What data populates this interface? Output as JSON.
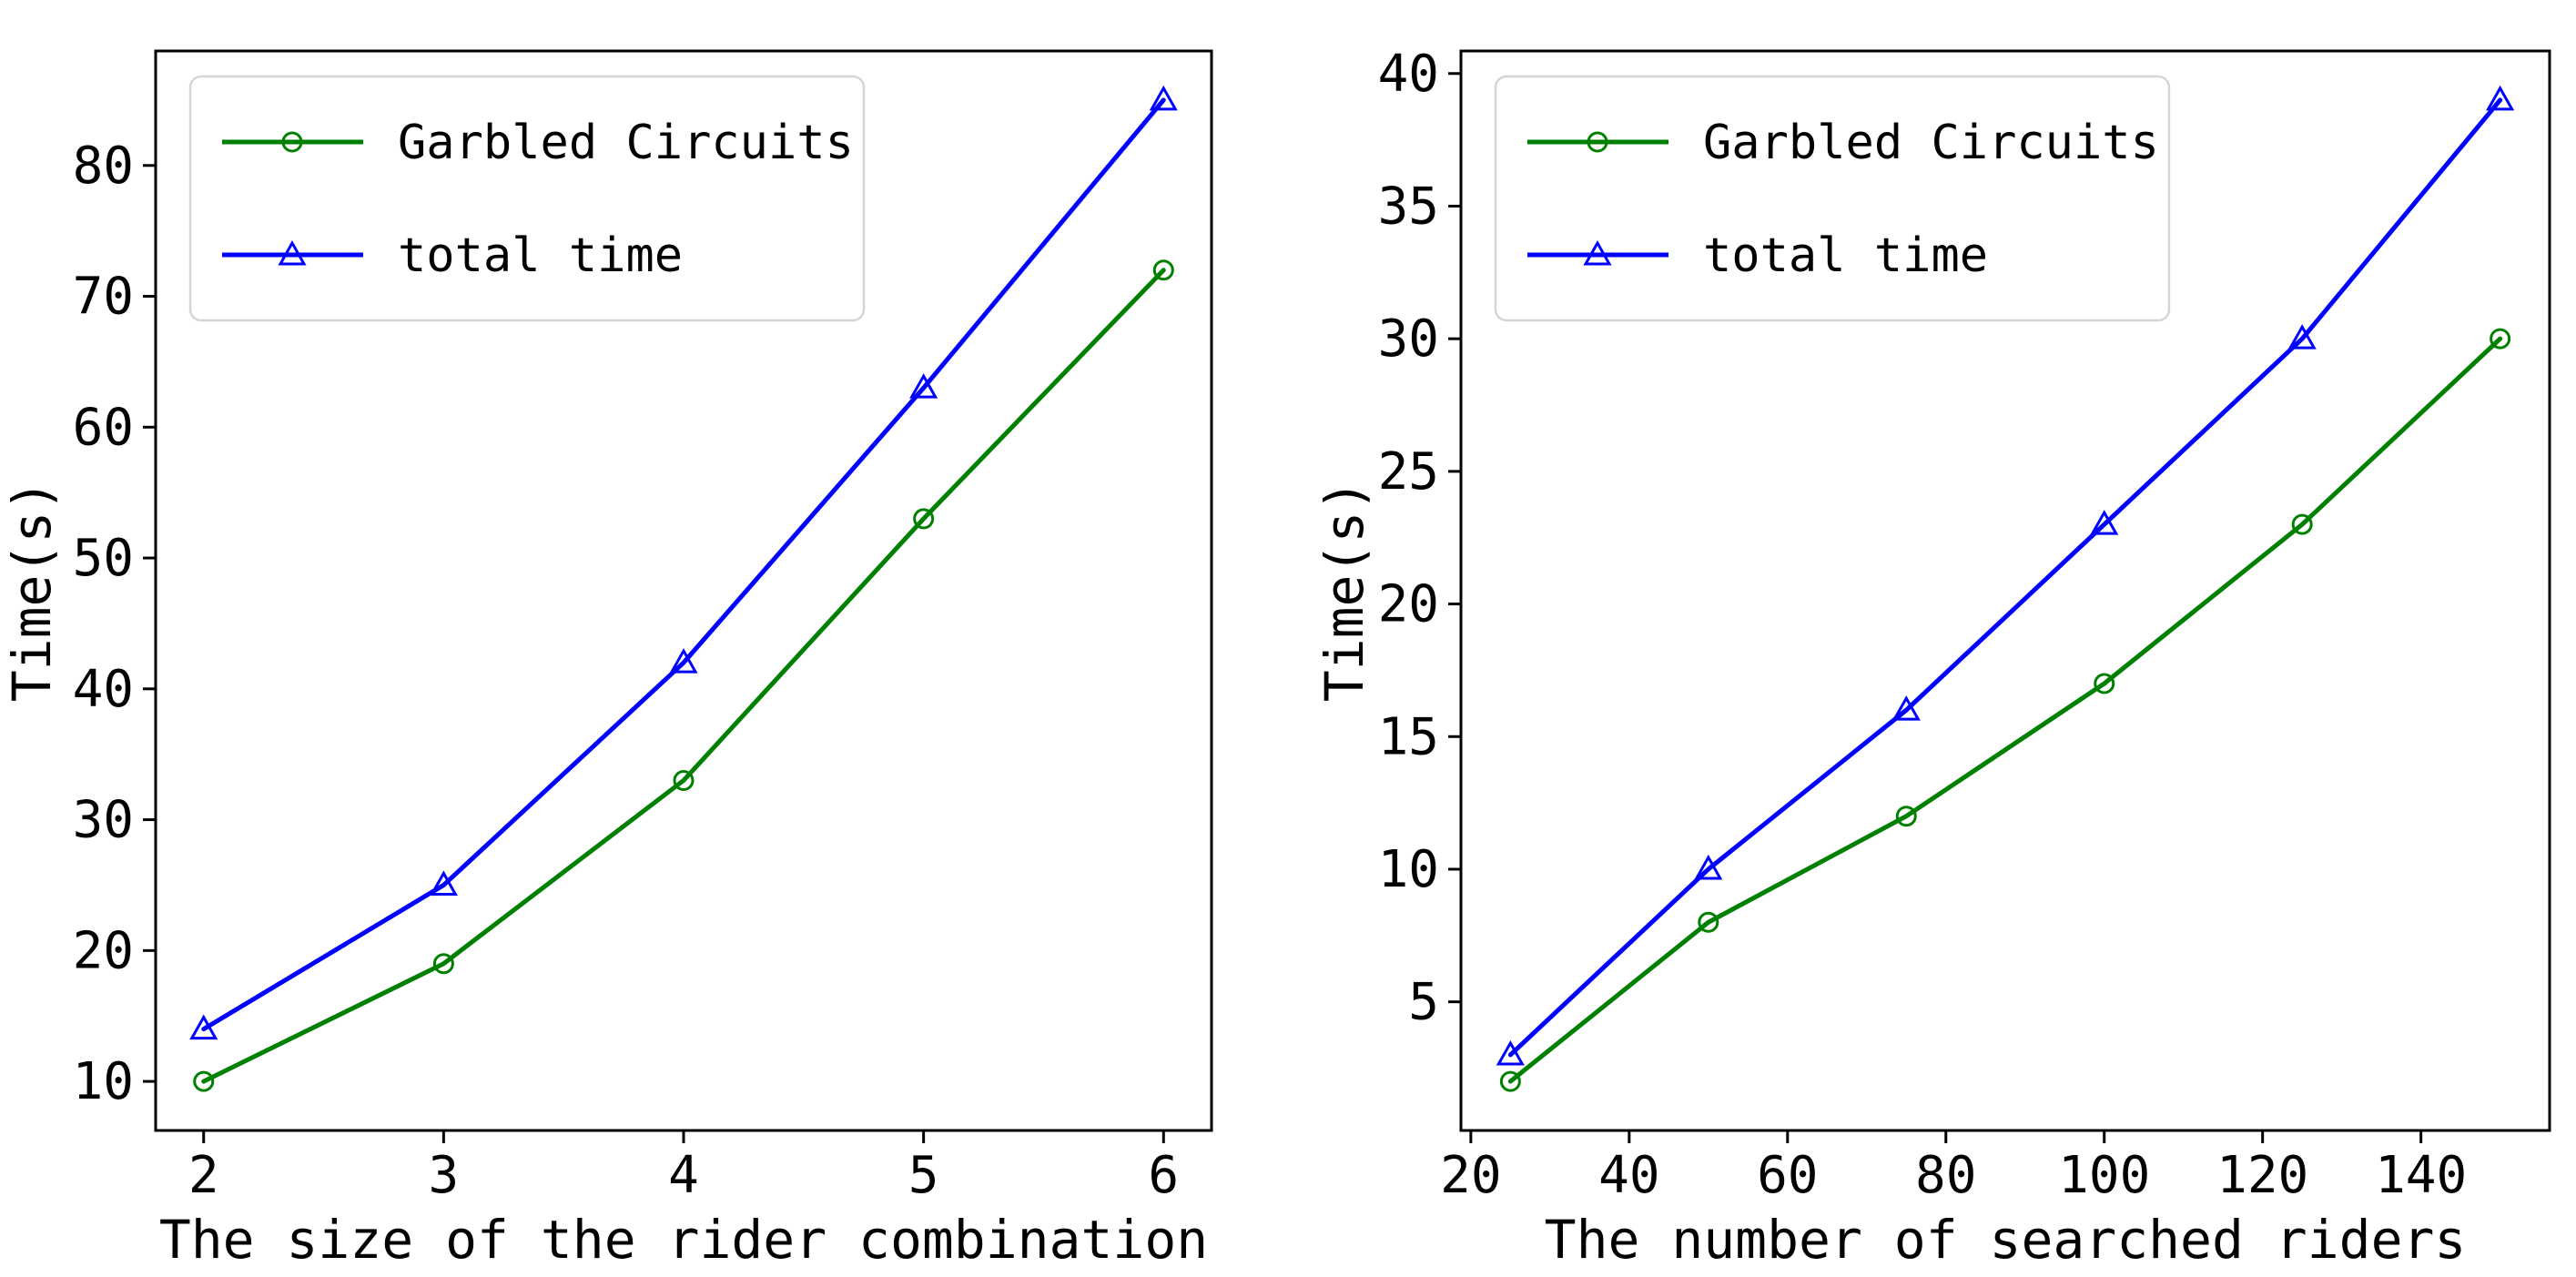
{
  "figure": {
    "background": "#ffffff",
    "text_color": "#000000",
    "legend_border_color": "#d5d5d5"
  },
  "chart_data": [
    {
      "type": "line",
      "title": "",
      "xlabel": "The size of the rider combination",
      "ylabel": "Time(s)",
      "xlim": [
        1.8,
        6.2
      ],
      "ylim": [
        6.25,
        88.75
      ],
      "xticks": [
        2,
        3,
        4,
        5,
        6
      ],
      "yticks": [
        10,
        20,
        30,
        40,
        50,
        60,
        70,
        80
      ],
      "grid": false,
      "legend_position": "upper left",
      "x": [
        2,
        3,
        4,
        5,
        6
      ],
      "series": [
        {
          "name": "Garbled Circuits",
          "color": "#008000",
          "marker": "circle",
          "values": [
            10,
            19,
            33,
            53,
            72
          ]
        },
        {
          "name": "total time",
          "color": "#0000ff",
          "marker": "triangle",
          "values": [
            14,
            25,
            42,
            63,
            85
          ]
        }
      ]
    },
    {
      "type": "line",
      "title": "",
      "xlabel": "The number of searched riders",
      "ylabel": "Time(s)",
      "xlim": [
        18.75,
        156.25
      ],
      "ylim": [
        0.15,
        40.85
      ],
      "xticks": [
        20,
        40,
        60,
        80,
        100,
        120,
        140
      ],
      "yticks": [
        5,
        10,
        15,
        20,
        25,
        30,
        35,
        40
      ],
      "grid": false,
      "legend_position": "upper left",
      "x": [
        25,
        50,
        75,
        100,
        125,
        150
      ],
      "series": [
        {
          "name": "Garbled Circuits",
          "color": "#008000",
          "marker": "circle",
          "values": [
            2,
            8,
            12,
            17,
            23,
            30
          ]
        },
        {
          "name": "total time",
          "color": "#0000ff",
          "marker": "triangle",
          "values": [
            3,
            10,
            16,
            23,
            30,
            39
          ]
        }
      ]
    }
  ]
}
